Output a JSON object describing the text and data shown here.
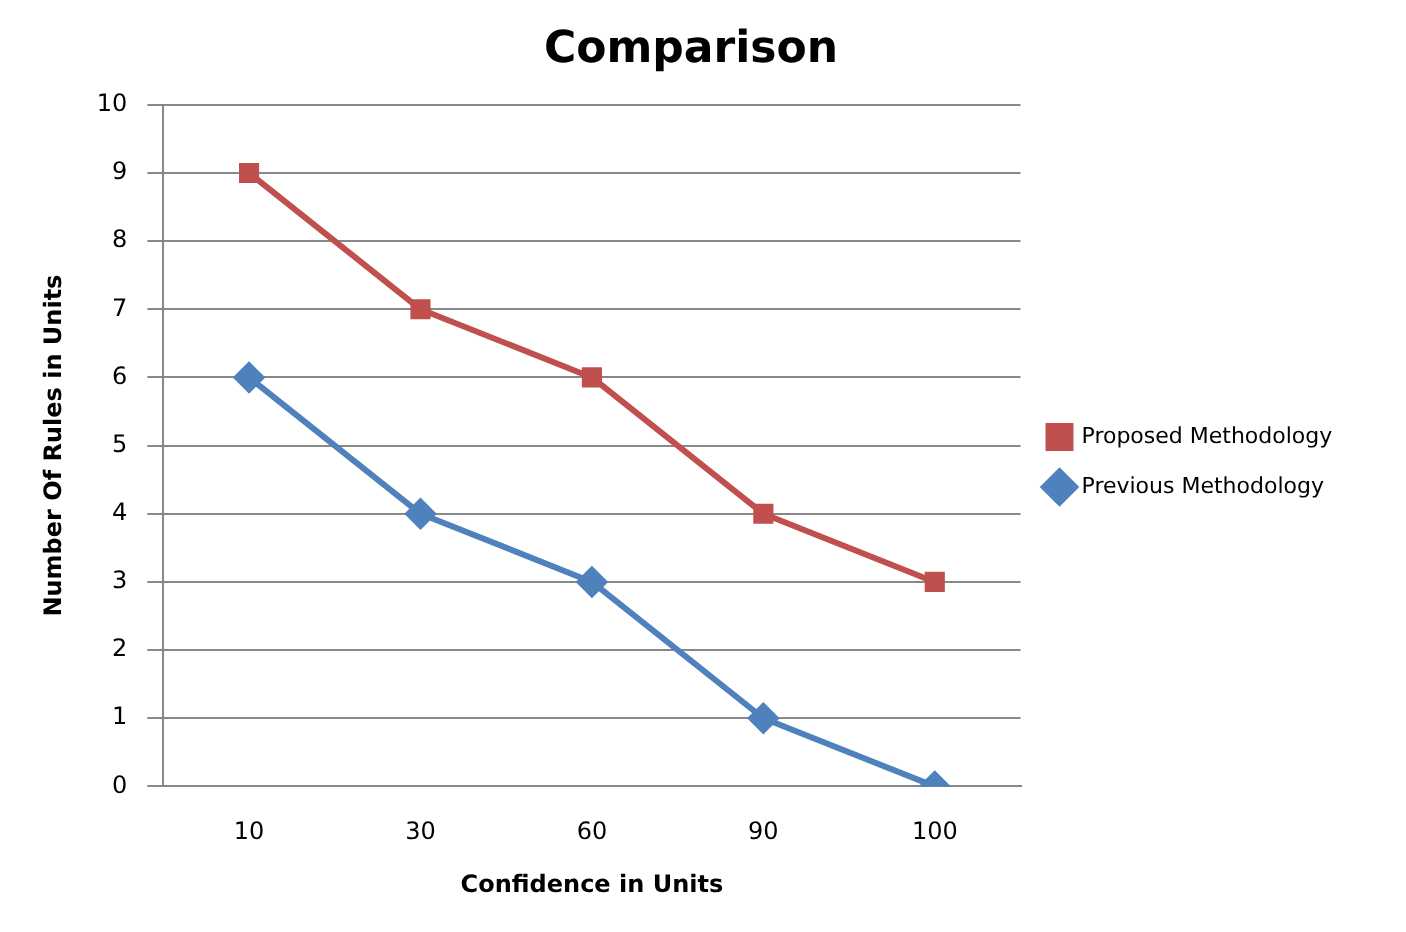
{
  "chart_data": {
    "type": "line",
    "title": "Comparison",
    "xlabel": "Confidence in Units",
    "ylabel": "Number Of Rules in Units",
    "categories": [
      "10",
      "30",
      "60",
      "90",
      "100"
    ],
    "series": [
      {
        "name": "Proposed Methodology",
        "color": "#c0504d",
        "marker": "square",
        "values": [
          9,
          7,
          6,
          4,
          3
        ]
      },
      {
        "name": "Previous Methodology",
        "color": "#4f81bd",
        "marker": "diamond",
        "values": [
          6,
          4,
          3,
          1,
          0
        ]
      }
    ],
    "ylim": [
      0,
      10
    ],
    "yticks": [
      0,
      1,
      2,
      3,
      4,
      5,
      6,
      7,
      8,
      9,
      10
    ],
    "grid": "y",
    "legend": "right",
    "line_style": "solid"
  }
}
